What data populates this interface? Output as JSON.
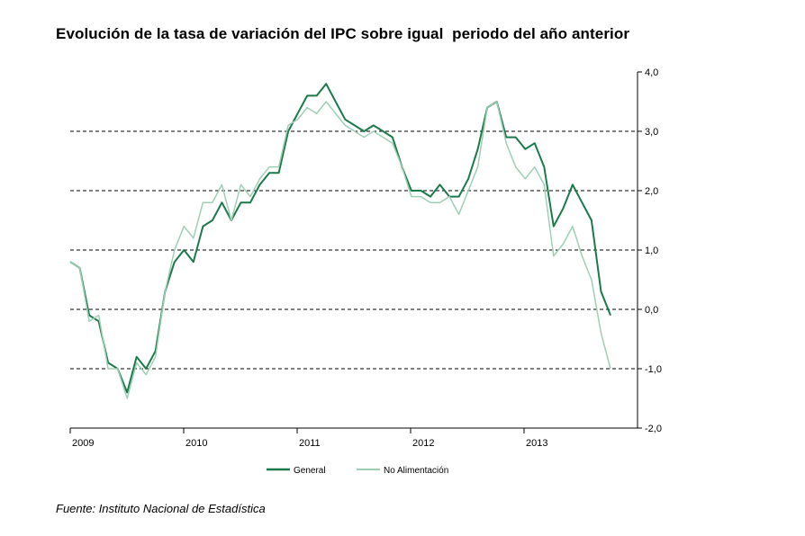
{
  "chart_data": {
    "type": "line",
    "title": "Evolución de la tasa de variación del IPC sobre igual  periodo del año anterior",
    "xlabel": "",
    "ylabel": "",
    "x_ticks": [
      "2009",
      "2010",
      "2011",
      "2012",
      "2013"
    ],
    "y_ticks": [
      "4,0",
      "3,0",
      "2,0",
      "1,0",
      "0,0",
      "-1,0",
      "-2,0"
    ],
    "ylim": [
      -2,
      4
    ],
    "x_start": "2009-01",
    "x_end": "2013-10",
    "grid": "dashed horizontal at 3,0 / 2,0 / 1,0 / 0,0 / -1,0",
    "legend_position": "bottom",
    "series": [
      {
        "name": "General",
        "color": "#1a7a4a",
        "values": [
          0.8,
          0.7,
          -0.1,
          -0.2,
          -0.9,
          -1.0,
          -1.4,
          -0.8,
          -1.0,
          -0.7,
          0.3,
          0.8,
          1.0,
          0.8,
          1.4,
          1.5,
          1.8,
          1.5,
          1.8,
          1.8,
          2.1,
          2.3,
          2.3,
          3.0,
          3.3,
          3.6,
          3.6,
          3.8,
          3.5,
          3.2,
          3.1,
          3.0,
          3.1,
          3.0,
          2.9,
          2.4,
          2.0,
          2.0,
          1.9,
          2.1,
          1.9,
          1.9,
          2.2,
          2.7,
          3.4,
          3.5,
          2.9,
          2.9,
          2.7,
          2.8,
          2.4,
          1.4,
          1.7,
          2.1,
          1.8,
          1.5,
          0.3,
          -0.1
        ]
      },
      {
        "name": "No Alimentación",
        "color": "#9ecfb4",
        "values": [
          0.8,
          0.7,
          -0.2,
          -0.1,
          -1.0,
          -1.0,
          -1.5,
          -0.9,
          -1.1,
          -0.8,
          0.3,
          1.0,
          1.4,
          1.2,
          1.8,
          1.8,
          2.1,
          1.5,
          2.1,
          1.9,
          2.2,
          2.4,
          2.4,
          3.1,
          3.2,
          3.4,
          3.3,
          3.5,
          3.3,
          3.1,
          3.0,
          2.9,
          3.0,
          2.9,
          2.8,
          2.4,
          1.9,
          1.9,
          1.8,
          1.8,
          1.9,
          1.6,
          2.0,
          2.4,
          3.4,
          3.5,
          2.8,
          2.4,
          2.2,
          2.4,
          2.1,
          0.9,
          1.1,
          1.4,
          0.9,
          0.5,
          -0.4,
          -1.0
        ]
      }
    ]
  },
  "source": "Fuente: Instituto Nacional de Estadística"
}
